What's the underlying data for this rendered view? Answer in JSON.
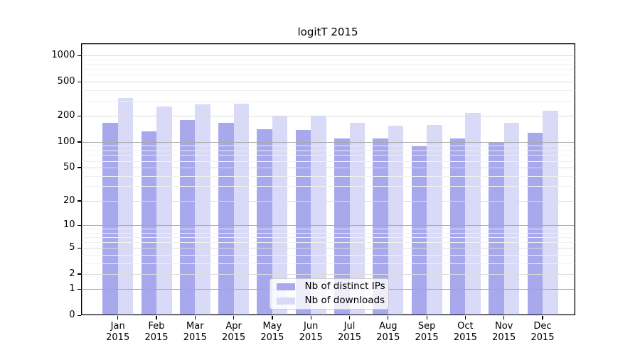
{
  "chart_data": {
    "type": "bar",
    "title": "logitT 2015",
    "year_label": "2015",
    "categories": [
      "Jan",
      "Feb",
      "Mar",
      "Apr",
      "May",
      "Jun",
      "Jul",
      "Aug",
      "Sep",
      "Oct",
      "Nov",
      "Dec"
    ],
    "series": [
      {
        "name": "Nb of distinct IPs",
        "color": "#a8a8ec",
        "values": [
          168,
          132,
          181,
          166,
          141,
          137,
          109,
          109,
          89,
          110,
          100,
          128
        ]
      },
      {
        "name": "Nb of downloads",
        "color": "#d9d9f8",
        "values": [
          322,
          260,
          273,
          278,
          197,
          203,
          167,
          155,
          157,
          217,
          167,
          231
        ]
      }
    ],
    "yticks": [
      0,
      1,
      2,
      5,
      10,
      20,
      50,
      100,
      200,
      500,
      1000
    ],
    "minor_yticks": [
      3,
      4,
      6,
      7,
      8,
      9,
      30,
      40,
      60,
      70,
      80,
      90,
      300,
      400,
      600,
      700,
      800,
      900
    ],
    "ylim": [
      0,
      1390
    ],
    "yscale": "log1p",
    "grid": true,
    "legend_position": "lower-center",
    "colors": {
      "grid_major_dark": "#a8a8a8",
      "grid_labeled": "#dcdcdc",
      "grid_minor": "#f1f1f1",
      "axis": "#000000"
    }
  }
}
